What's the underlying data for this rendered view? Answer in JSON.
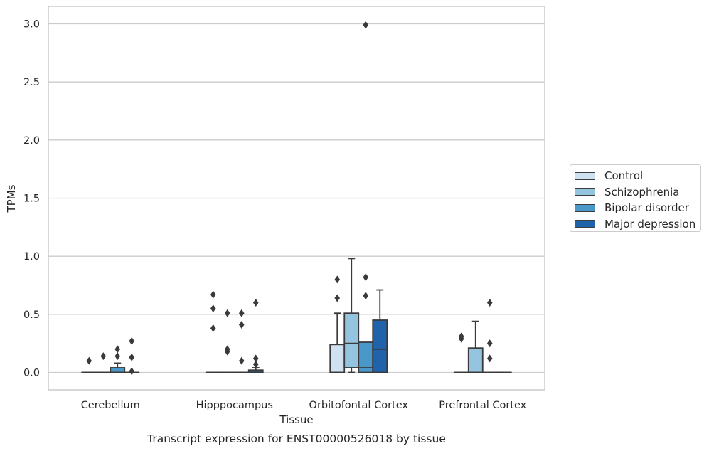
{
  "chart_data": {
    "type": "box",
    "title": "",
    "caption": "Transcript expression for ENST00000526018 by tissue",
    "xlabel": "Tissue",
    "ylabel": "TPMs",
    "ylim": [
      -0.15,
      3.15
    ],
    "yticks": [
      "0.0",
      "0.5",
      "1.0",
      "1.5",
      "2.0",
      "2.5",
      "3.0"
    ],
    "grid": "horizontal",
    "legend_position": "right",
    "categories": [
      "Cerebellum",
      "Hipppocampus",
      "Orbitofontal Cortex",
      "Prefrontal Cortex"
    ],
    "series": [
      {
        "name": "Control",
        "color": "#d0e1f2",
        "boxes": [
          {
            "q1": 0,
            "median": 0,
            "q3": 0,
            "whisker_low": 0,
            "whisker_high": 0,
            "outliers": [
              0.1
            ]
          },
          {
            "q1": 0,
            "median": 0,
            "q3": 0,
            "whisker_low": 0,
            "whisker_high": 0,
            "outliers": [
              0.38,
              0.55,
              0.67
            ]
          },
          {
            "q1": 0,
            "median": 0,
            "q3": 0.24,
            "whisker_low": 0,
            "whisker_high": 0.51,
            "outliers": [
              0.64,
              0.8
            ]
          },
          {
            "q1": 0,
            "median": 0,
            "q3": 0,
            "whisker_low": 0,
            "whisker_high": 0,
            "outliers": [
              0.29,
              0.31
            ]
          }
        ]
      },
      {
        "name": "Schizophrenia",
        "color": "#94c4df",
        "boxes": [
          {
            "q1": 0,
            "median": 0,
            "q3": 0,
            "whisker_low": 0,
            "whisker_high": 0,
            "outliers": [
              0.14
            ]
          },
          {
            "q1": 0,
            "median": 0,
            "q3": 0,
            "whisker_low": 0,
            "whisker_high": 0,
            "outliers": [
              0.18,
              0.2,
              0.51
            ]
          },
          {
            "q1": 0.04,
            "median": 0.25,
            "q3": 0.51,
            "whisker_low": 0,
            "whisker_high": 0.98,
            "outliers": []
          },
          {
            "q1": 0,
            "median": 0,
            "q3": 0.21,
            "whisker_low": 0,
            "whisker_high": 0.44,
            "outliers": []
          }
        ]
      },
      {
        "name": "Bipolar disorder",
        "color": "#4a98c9",
        "boxes": [
          {
            "q1": 0,
            "median": 0,
            "q3": 0.04,
            "whisker_low": 0,
            "whisker_high": 0.08,
            "outliers": [
              0.14,
              0.2
            ]
          },
          {
            "q1": 0,
            "median": 0,
            "q3": 0,
            "whisker_low": 0,
            "whisker_high": 0,
            "outliers": [
              0.1,
              0.41,
              0.51
            ]
          },
          {
            "q1": 0,
            "median": 0.04,
            "q3": 0.26,
            "whisker_low": 0,
            "whisker_high": 0.26,
            "outliers": [
              0.66,
              0.82,
              2.99
            ]
          },
          {
            "q1": 0,
            "median": 0,
            "q3": 0,
            "whisker_low": 0,
            "whisker_high": 0,
            "outliers": [
              0.12,
              0.25,
              0.6
            ]
          }
        ]
      },
      {
        "name": "Major depression",
        "color": "#2163aa",
        "boxes": [
          {
            "q1": 0,
            "median": 0,
            "q3": 0,
            "whisker_low": 0,
            "whisker_high": 0,
            "outliers": [
              0.01,
              0.13,
              0.27
            ]
          },
          {
            "q1": 0,
            "median": 0,
            "q3": 0.02,
            "whisker_low": 0,
            "whisker_high": 0.04,
            "outliers": [
              0.07,
              0.12,
              0.6
            ]
          },
          {
            "q1": 0,
            "median": 0.2,
            "q3": 0.45,
            "whisker_low": 0,
            "whisker_high": 0.71,
            "outliers": []
          },
          {
            "q1": 0,
            "median": 0,
            "q3": 0,
            "whisker_low": 0,
            "whisker_high": 0,
            "outliers": []
          }
        ]
      }
    ]
  }
}
